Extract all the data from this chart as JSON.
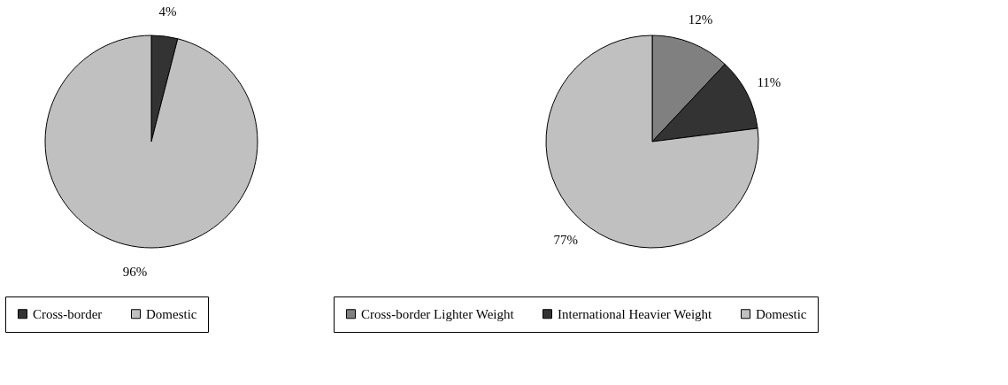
{
  "chart_data": [
    {
      "type": "pie",
      "categories": [
        "Cross-border",
        "Domestic"
      ],
      "values": [
        4,
        96
      ],
      "colors": [
        "#333333",
        "#c0c0c0"
      ],
      "value_labels": [
        "4%",
        "96%"
      ],
      "legend": "bottom"
    },
    {
      "type": "pie",
      "categories": [
        "Cross-border Lighter Weight",
        "International Heavier Weight",
        "Domestic"
      ],
      "values": [
        12,
        11,
        77
      ],
      "colors": [
        "#808080",
        "#333333",
        "#c0c0c0"
      ],
      "value_labels": [
        "12%",
        "11%",
        "77%"
      ],
      "legend": "bottom"
    }
  ]
}
